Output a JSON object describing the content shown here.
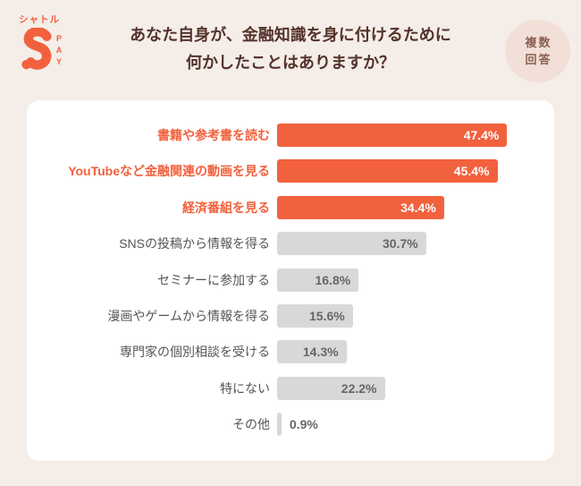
{
  "logo": {
    "name_katakana": "シャトル",
    "name_latin": "PAY"
  },
  "header": {
    "title_line1": "あなた自身が、金融知識を身に付けるために",
    "title_line2": "何かしたことはありますか？",
    "badge_line1": "複数",
    "badge_line2": "回答"
  },
  "colors": {
    "background": "#F4EDE8",
    "card": "#FFFFFF",
    "accent_orange": "#F2613D",
    "bar_gray": "#D8D8D8",
    "title_brown": "#54332B",
    "badge_bg": "#F2DFD8",
    "badge_text": "#8C6152",
    "label_gray": "#555555",
    "value_gray": "#666666"
  },
  "chart_data": {
    "type": "bar",
    "orientation": "horizontal",
    "title": "あなた自身が、金融知識を身に付けるために何かしたことはありますか？",
    "annotation": "複数回答",
    "unit": "%",
    "xlim": [
      0,
      50
    ],
    "grid": false,
    "legend": "none",
    "categories": [
      "書籍や参考書を読む",
      "YouTubeなど金融関連の動画を見る",
      "経済番組を見る",
      "SNSの投稿から情報を得る",
      "セミナーに参加する",
      "漫画やゲームから情報を得る",
      "専門家の個別相談を受ける",
      "特にない",
      "その他"
    ],
    "values": [
      47.4,
      45.4,
      34.4,
      30.7,
      16.8,
      15.6,
      14.3,
      22.2,
      0.9
    ],
    "value_labels": [
      "47.4%",
      "45.4%",
      "34.4%",
      "30.7%",
      "16.8%",
      "15.6%",
      "14.3%",
      "22.2%",
      "0.9%"
    ],
    "highlighted": [
      true,
      true,
      true,
      false,
      false,
      false,
      false,
      false,
      false
    ]
  }
}
